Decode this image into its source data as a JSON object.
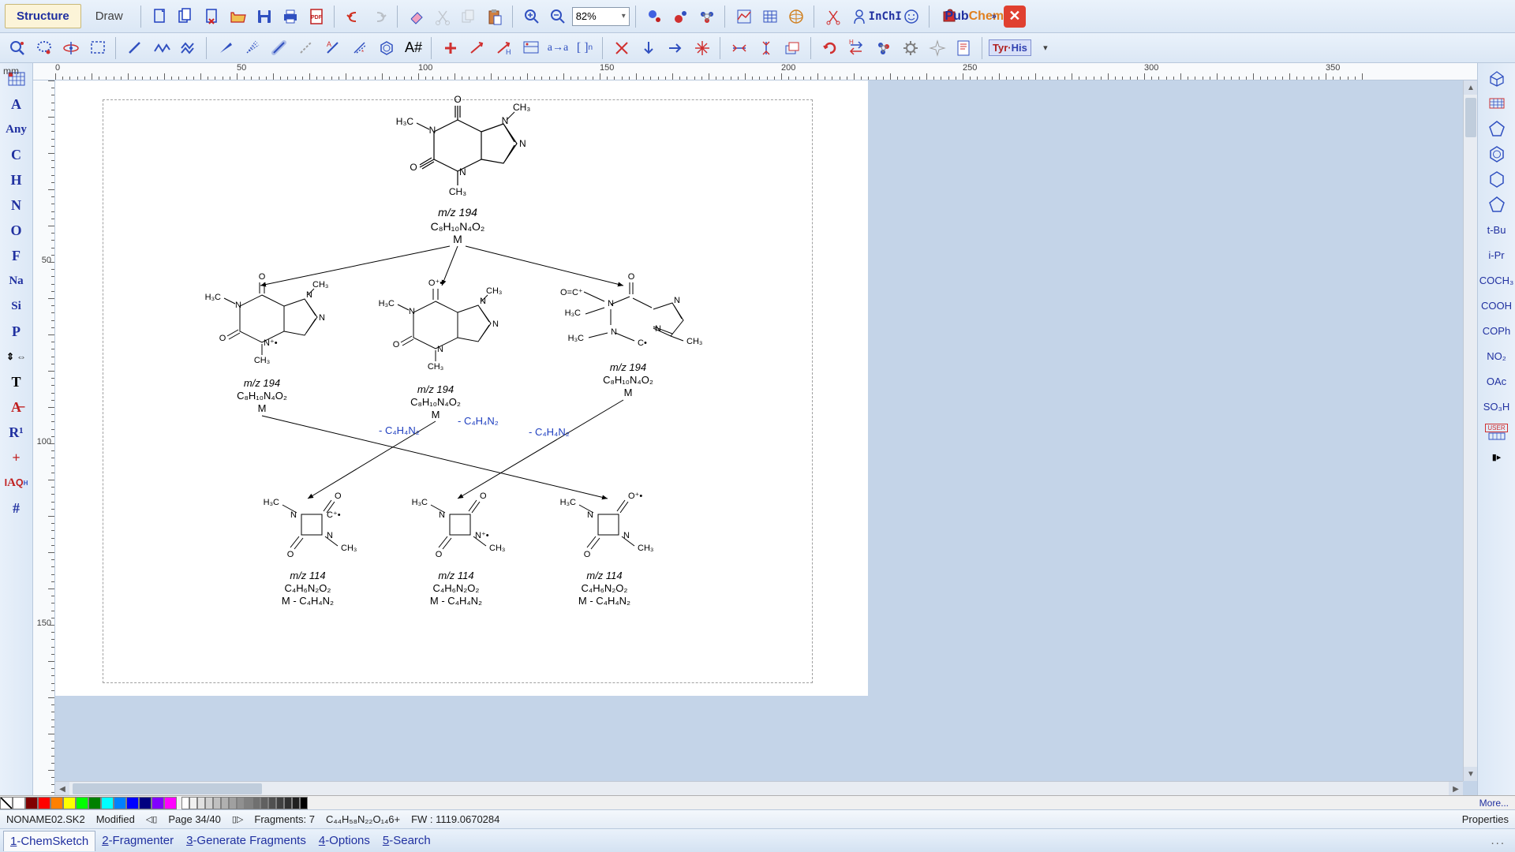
{
  "mode_tabs": {
    "structure": "Structure",
    "draw": "Draw"
  },
  "zoom": "82%",
  "inchi_label": "InChI",
  "pubchem": {
    "pub": "Pub",
    "chem": "Chem"
  },
  "tyr_his": {
    "tyr": "Tyr",
    "his": "His"
  },
  "left_elements": [
    "A",
    "Any",
    "C",
    "H",
    "N",
    "O",
    "F",
    "Na",
    "Si",
    "P"
  ],
  "left_extra": [
    "T",
    "R¹",
    "+",
    "#"
  ],
  "ruler": {
    "unit": "mm",
    "top_ticks": [
      0,
      50,
      100,
      150,
      200,
      250,
      300,
      350
    ],
    "left_ticks": [
      50,
      100,
      150
    ]
  },
  "right_groups": [
    "t-Bu",
    "i-Pr",
    "COCH₃",
    "COOH",
    "COPh",
    "NO₂",
    "OAc",
    "SO₃H"
  ],
  "right_user": "USER",
  "structures": {
    "top": {
      "mz": "m/z 194",
      "formula": "C₈H₁₀N₄O₂",
      "m": "M"
    },
    "mid": [
      {
        "mz": "m/z 194",
        "formula": "C₈H₁₀N₄O₂",
        "m": "M"
      },
      {
        "mz": "m/z 194",
        "formula": "C₈H₁₀N₄O₂",
        "m": "M"
      },
      {
        "mz": "m/z 194",
        "formula": "C₈H₁₀N₄O₂",
        "m": "M"
      }
    ],
    "loss": "- C₄H₄N₂",
    "bot": [
      {
        "mz": "m/z 114",
        "formula": "C₄H₆N₂O₂",
        "m": "M - C₄H₄N₂"
      },
      {
        "mz": "m/z 114",
        "formula": "C₄H₆N₂O₂",
        "m": "M - C₄H₄N₂"
      },
      {
        "mz": "m/z 114",
        "formula": "C₄H₆N₂O₂",
        "m": "M - C₄H₄N₂"
      }
    ]
  },
  "palette_colors": [
    "#ffffff",
    "#800000",
    "#ff0000",
    "#ff8000",
    "#ffff00",
    "#00ff00",
    "#008000",
    "#00ffff",
    "#0080ff",
    "#0000ff",
    "#000080",
    "#8000ff",
    "#ff00ff"
  ],
  "palette_grays": [
    "#ffffff",
    "#f0f0f0",
    "#e0e0e0",
    "#d0d0d0",
    "#c0c0c0",
    "#b0b0b0",
    "#a0a0a0",
    "#909090",
    "#808080",
    "#707070",
    "#606060",
    "#505050",
    "#404040",
    "#303030",
    "#202020",
    "#000000"
  ],
  "palette_more": "More...",
  "status": {
    "filename": "NONAME02.SK2",
    "modified": "Modified",
    "page": "Page 34/40",
    "fragments": "Fragments: 7",
    "formula": "C₄₄H₅₈N₂₂O₁₄6+",
    "fw": "FW : 1119.0670284",
    "properties": "Properties"
  },
  "bottom_tabs": [
    "1-ChemSketch",
    "2-Fragmenter",
    "3-Generate Fragments",
    "4-Options",
    "5-Search"
  ]
}
